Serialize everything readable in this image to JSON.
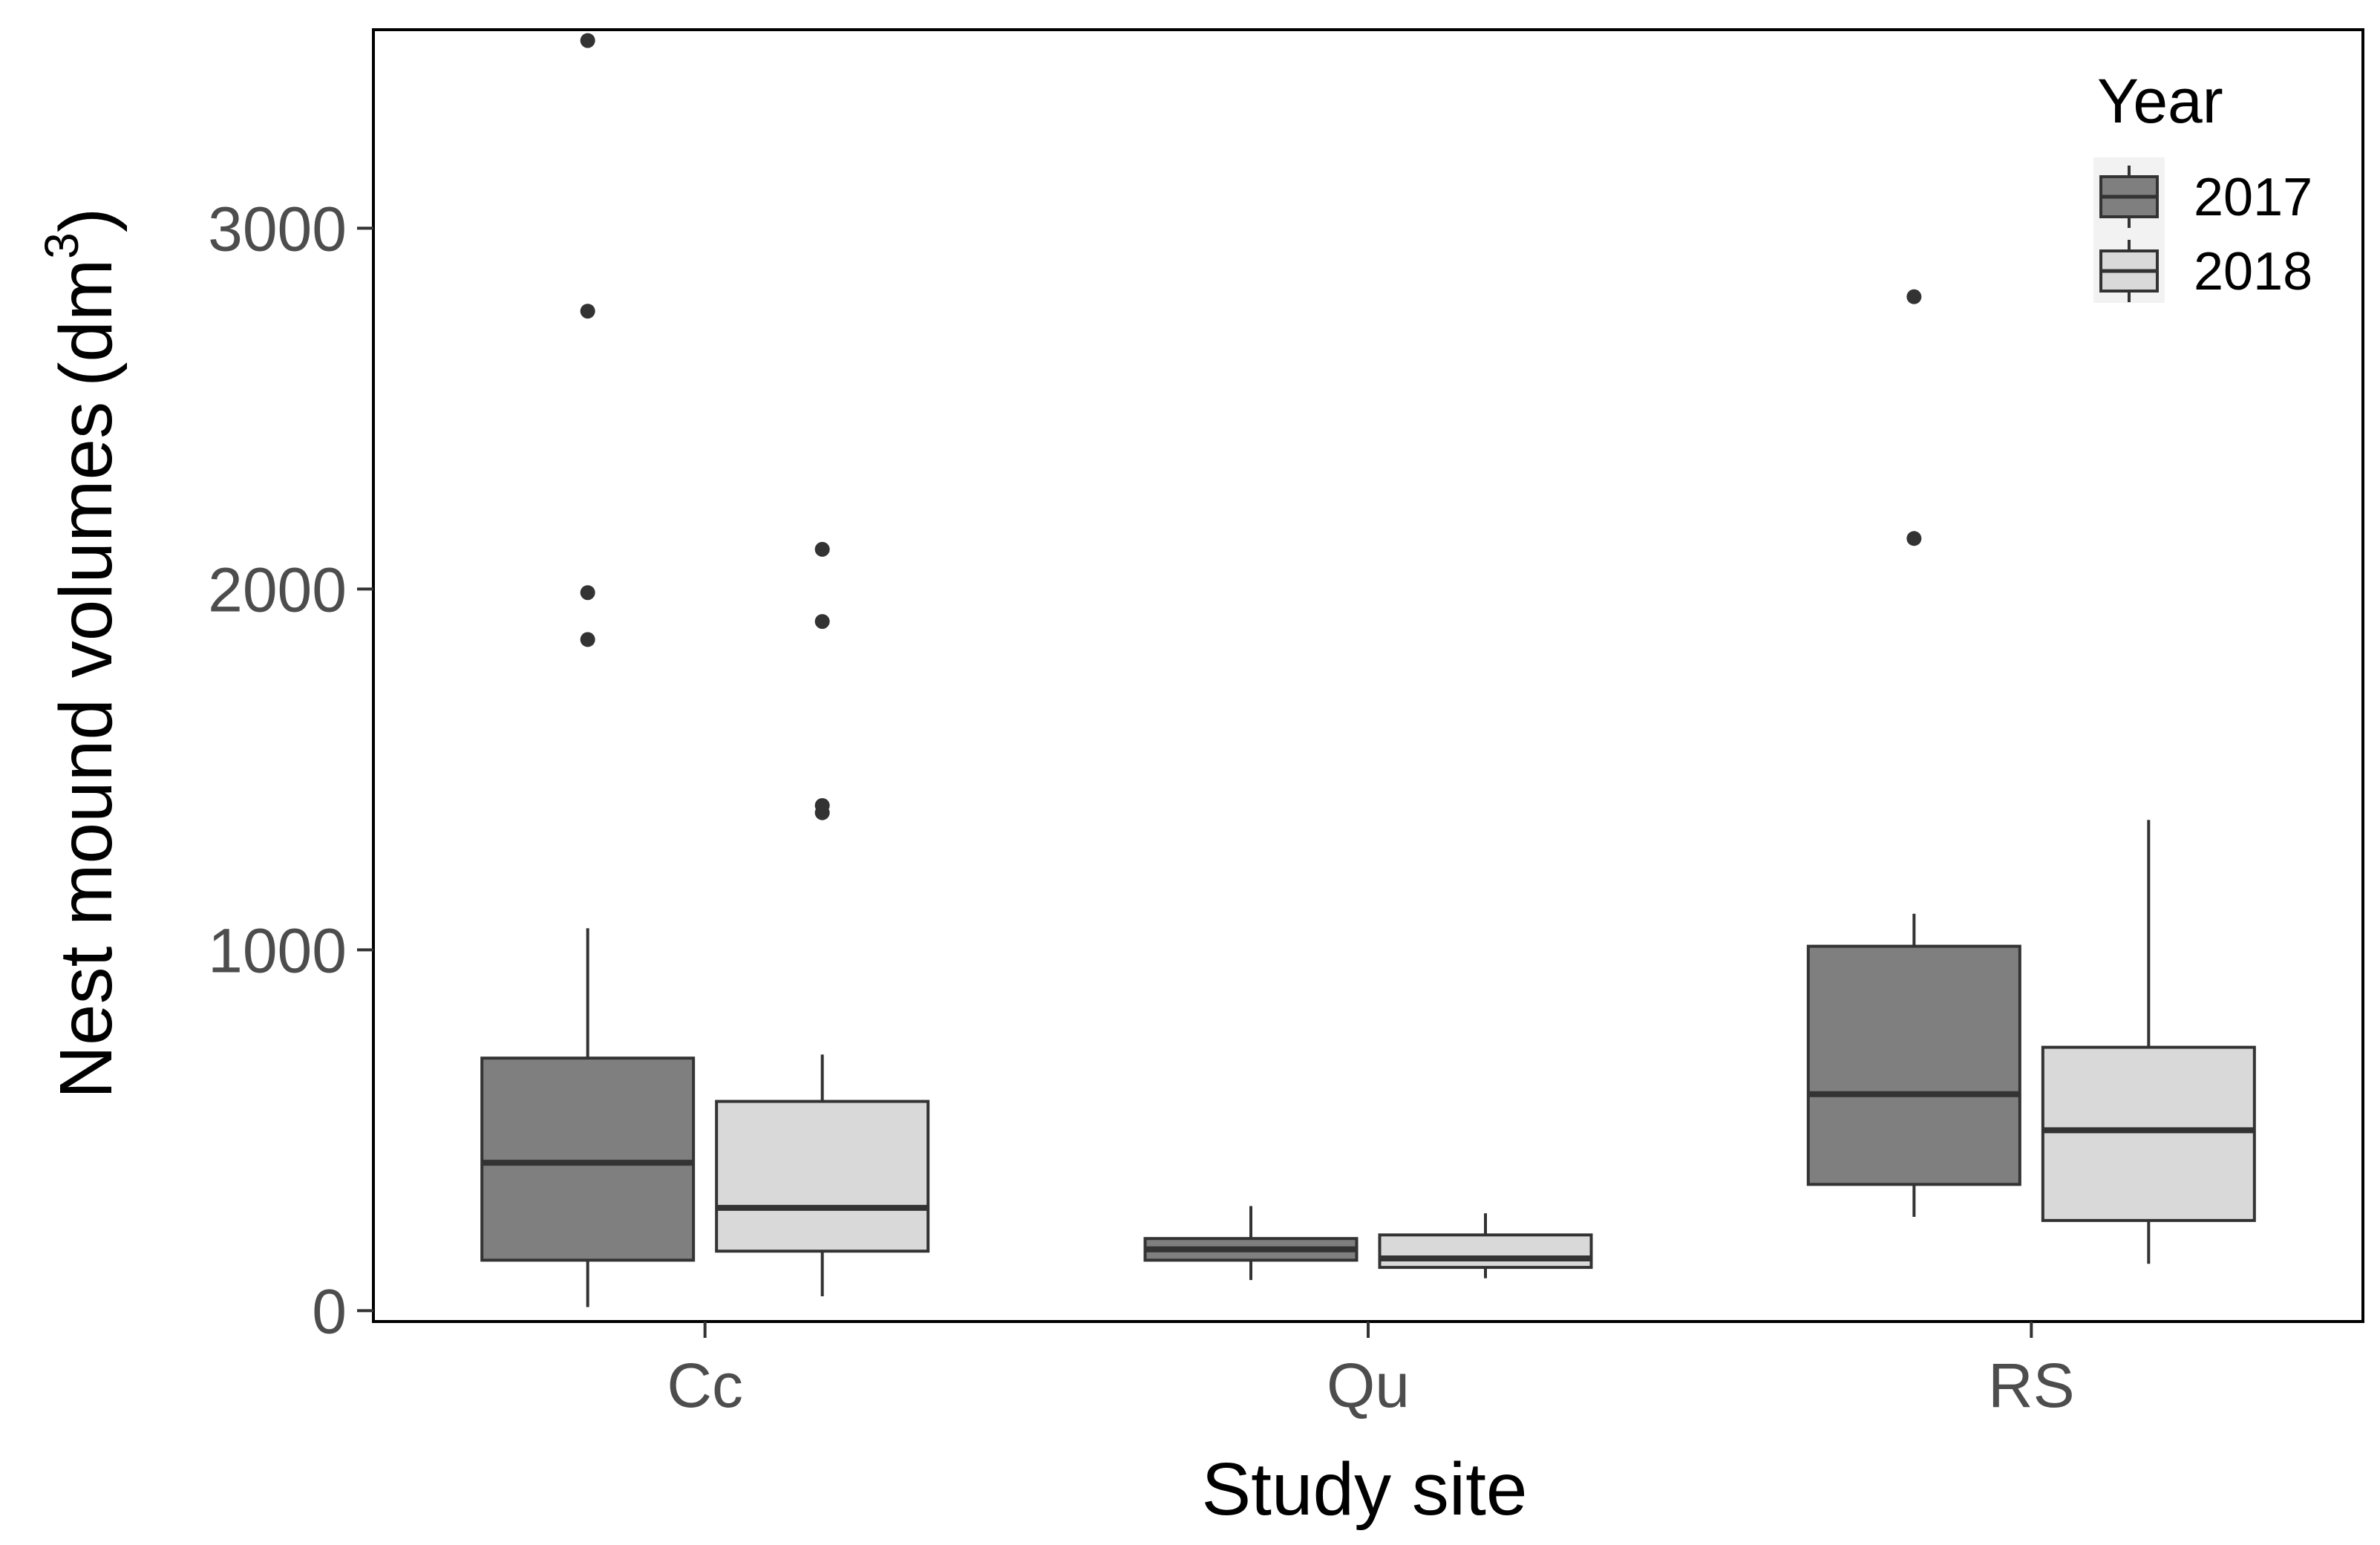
{
  "chart_data": {
    "type": "boxplot",
    "title": "",
    "xlabel": "Study site",
    "ylabel_prefix": "Nest mound volumes",
    "ylabel_unit_base": "(dm",
    "ylabel_unit_exp": "3",
    "ylabel_unit_close": ")",
    "ylim": [
      -30,
      3550
    ],
    "yticks": [
      0,
      1000,
      2000,
      3000
    ],
    "ytick_labels": [
      "0",
      "1000",
      "2000",
      "3000"
    ],
    "categories": [
      "Cc",
      "Qu",
      "RS"
    ],
    "legend": {
      "title": "Year",
      "position": "top-right"
    },
    "series": [
      {
        "name": "2017",
        "color": "#7f7f7f",
        "boxes": [
          {
            "category": "Cc",
            "whisker_low": 10,
            "q1": 140,
            "median": 410,
            "q3": 700,
            "whisker_high": 1060,
            "outliers": [
              1860,
              1990,
              2770,
              3520
            ]
          },
          {
            "category": "Qu",
            "whisker_low": 85,
            "q1": 140,
            "median": 170,
            "q3": 200,
            "whisker_high": 290,
            "outliers": []
          },
          {
            "category": "RS",
            "whisker_low": 260,
            "q1": 350,
            "median": 600,
            "q3": 1010,
            "whisker_high": 1100,
            "outliers": [
              2140,
              2810
            ]
          }
        ]
      },
      {
        "name": "2018",
        "color": "#d9d9d9",
        "boxes": [
          {
            "category": "Cc",
            "whisker_low": 40,
            "q1": 165,
            "median": 285,
            "q3": 580,
            "whisker_high": 710,
            "outliers": [
              1380,
              1400,
              1910,
              2110
            ]
          },
          {
            "category": "Qu",
            "whisker_low": 90,
            "q1": 120,
            "median": 145,
            "q3": 210,
            "whisker_high": 270,
            "outliers": []
          },
          {
            "category": "RS",
            "whisker_low": 130,
            "q1": 250,
            "median": 500,
            "q3": 730,
            "whisker_high": 1360,
            "outliers": []
          }
        ]
      }
    ]
  }
}
